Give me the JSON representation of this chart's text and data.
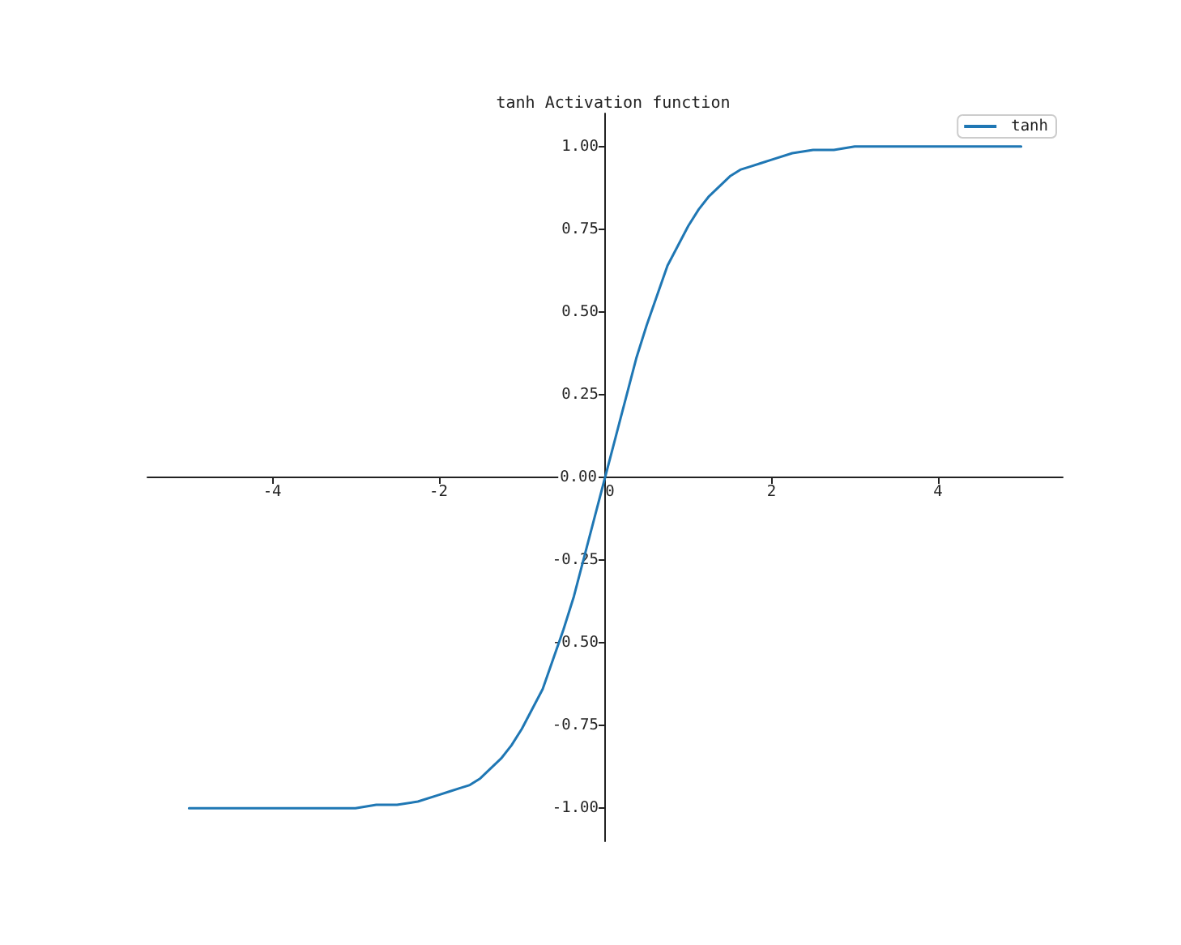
{
  "chart_data": {
    "type": "line",
    "title": "tanh Activation function",
    "x": [
      -5,
      -4.75,
      -4.5,
      -4.25,
      -4,
      -3.75,
      -3.5,
      -3.25,
      -3,
      -2.75,
      -2.5,
      -2.25,
      -2,
      -1.875,
      -1.75,
      -1.625,
      -1.5,
      -1.375,
      -1.25,
      -1.125,
      -1,
      -0.875,
      -0.75,
      -0.625,
      -0.5,
      -0.375,
      -0.25,
      -0.125,
      0,
      0.125,
      0.25,
      0.375,
      0.5,
      0.625,
      0.75,
      0.875,
      1,
      1.125,
      1.25,
      1.375,
      1.5,
      1.625,
      1.75,
      1.875,
      2,
      2.25,
      2.5,
      2.75,
      3,
      3.25,
      3.5,
      3.75,
      4,
      4.25,
      4.5,
      4.75,
      5
    ],
    "series": [
      {
        "name": "tanh",
        "color": "#1f77b4",
        "values": [
          -1,
          -1,
          -1,
          -1,
          -1,
          -1,
          -1,
          -1,
          -1,
          -0.99,
          -0.99,
          -0.98,
          -0.96,
          -0.95,
          -0.94,
          -0.93,
          -0.91,
          -0.88,
          -0.85,
          -0.81,
          -0.76,
          -0.7,
          -0.64,
          -0.55,
          -0.46,
          -0.36,
          -0.24,
          -0.12,
          0,
          0.12,
          0.24,
          0.36,
          0.46,
          0.55,
          0.64,
          0.7,
          0.76,
          0.81,
          0.85,
          0.88,
          0.91,
          0.93,
          0.94,
          0.95,
          0.96,
          0.98,
          0.99,
          0.99,
          1,
          1,
          1,
          1,
          1,
          1,
          1,
          1,
          1
        ]
      }
    ],
    "xlim": [
      -5.5,
      5.5
    ],
    "ylim": [
      -1.1,
      1.1
    ],
    "xticks": [
      -4,
      -2,
      0,
      2,
      4
    ],
    "yticks": [
      {
        "value": -1,
        "label": "-1.00"
      },
      {
        "value": -0.75,
        "label": "-0.75"
      },
      {
        "value": -0.5,
        "label": "-0.50"
      },
      {
        "value": -0.25,
        "label": "-0.25"
      },
      {
        "value": 0,
        "label": "0.00"
      },
      {
        "value": 0.25,
        "label": "0.25"
      },
      {
        "value": 0.5,
        "label": "0.50"
      },
      {
        "value": 0.75,
        "label": "0.75"
      },
      {
        "value": 1,
        "label": "1.00"
      }
    ],
    "grid": false,
    "legend": "top right",
    "marker": "none",
    "line_style": "solid"
  }
}
